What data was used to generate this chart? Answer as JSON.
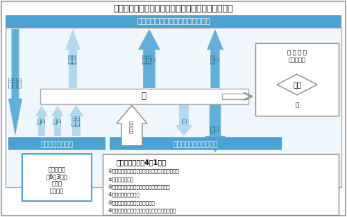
{
  "title": "隣人トラブルの防止および調整の対応の流れ（例）",
  "bg_color": "#ffffff",
  "banner_top_text": "反復して迷惑行為を行う「行為者」",
  "banner_bottom_text": "日常生活音の「発生者」",
  "banner_bottom2_text": "規制基準を下回る",
  "banner_color": "#4ba3d3",
  "shi_box_text": "市",
  "related_org_title": "関 保 機 関",
  "related_org_sub": "（警察等）",
  "related_org_label": "連携",
  "related_org_label2": "市",
  "third_party_text": "第　三　者\n（6条3項）\n調見者\n警察　等",
  "meiwaku_title": "迷惑行為とは（4条1項）",
  "meiwaku_items": [
    "①つきまとい・待ち伏せ・通路に立ちふさがるなど",
    "②乱暴な言動など",
    "③無言電話・連続した電話・メール送信など",
    "④汚物などの送付など",
    "⑤名誉を害する事項を告げるなど",
    "⑥社会通念上受忍限度を超えると認められる行為"
  ]
}
